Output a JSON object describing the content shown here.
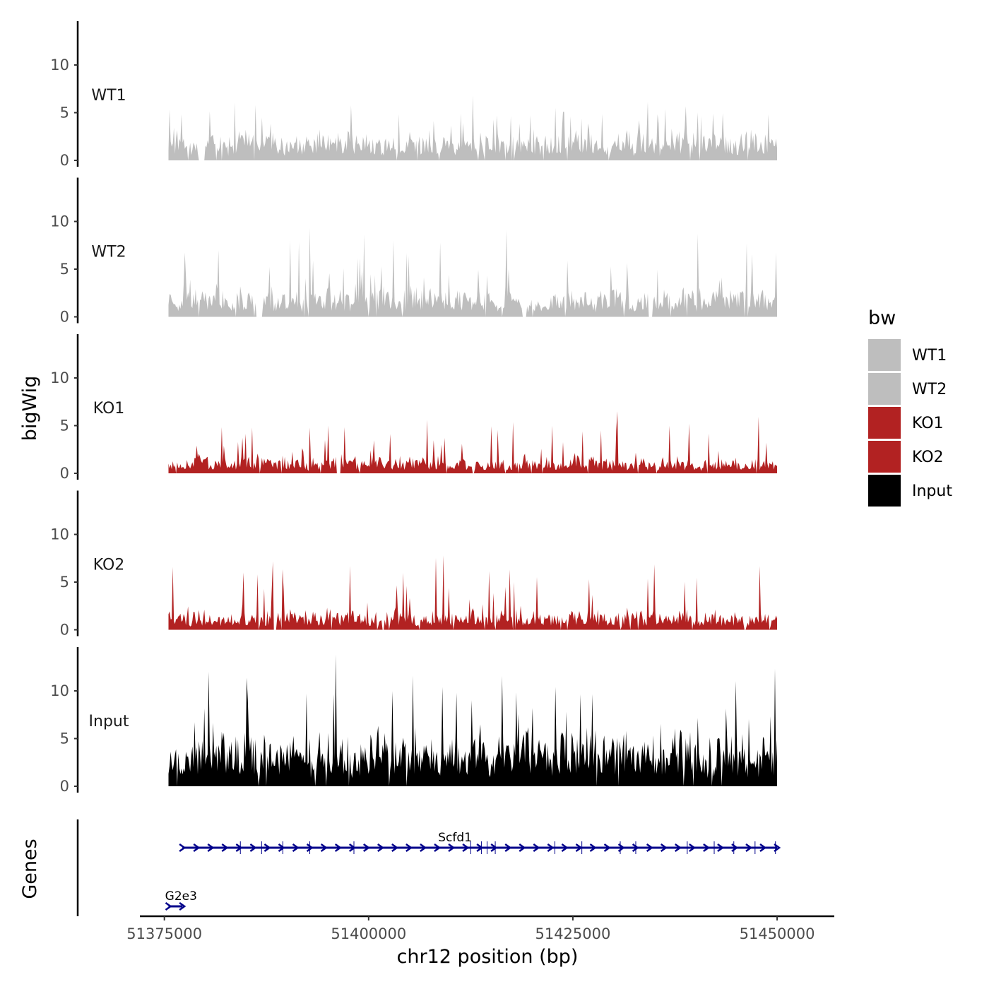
{
  "chart_data": {
    "type": "area",
    "title": "",
    "ylabel": "bigWig",
    "xlabel": "chr12 position (bp)",
    "xlim": [
      51372000,
      51457000
    ],
    "x_ticks": [
      51375000,
      51400000,
      51425000,
      51450000
    ],
    "x_tick_labels": [
      "51375000",
      "51400000",
      "51425000",
      "51450000"
    ],
    "signal_range": [
      51375500,
      51450000
    ],
    "ylim": [
      0,
      14.5
    ],
    "y_ticks": [
      0,
      5,
      10
    ],
    "y_tick_labels": [
      "0",
      "5",
      "10"
    ],
    "tracks": [
      {
        "name": "WT1",
        "label": "WT1",
        "color": "#BEBEBE",
        "seed": 11,
        "base": 2.2,
        "max_value": 6.8,
        "gaps": [
          [
            51379200,
            51380000
          ]
        ]
      },
      {
        "name": "WT2",
        "label": "WT2",
        "color": "#BEBEBE",
        "seed": 23,
        "base": 2.3,
        "max_value": 9.3,
        "gaps": [
          [
            51386200,
            51387000
          ],
          [
            51418800,
            51419300
          ],
          [
            51434300,
            51434800
          ]
        ]
      },
      {
        "name": "KO1",
        "label": "KO1",
        "color": "#B22222",
        "seed": 37,
        "base": 1.3,
        "max_value": 6.5,
        "gaps": [
          [
            51396000,
            51396600
          ]
        ]
      },
      {
        "name": "KO2",
        "label": "KO2",
        "color": "#B22222",
        "seed": 41,
        "base": 1.5,
        "max_value": 7.8,
        "gaps": [
          [
            51388300,
            51388800
          ],
          [
            51401600,
            51401900
          ],
          [
            51445900,
            51446200
          ]
        ]
      },
      {
        "name": "Input",
        "label": "Input",
        "color": "#000000",
        "seed": 53,
        "base": 4.3,
        "max_value": 13.8,
        "gaps": []
      }
    ],
    "legend": {
      "title": "bw",
      "position": "right",
      "entries": [
        {
          "label": "WT1",
          "color": "#BEBEBE"
        },
        {
          "label": "WT2",
          "color": "#BEBEBE"
        },
        {
          "label": "KO1",
          "color": "#B22222"
        },
        {
          "label": "KO2",
          "color": "#B22222"
        },
        {
          "label": "Input",
          "color": "#000000"
        }
      ]
    },
    "genes_panel": {
      "label": "Genes",
      "color": "#00008B",
      "genes": [
        {
          "name": "Scfd1",
          "start": 51377200,
          "end": 51450000,
          "strand": "+",
          "exons": [
            51384300,
            51386900,
            51389500,
            51392800,
            51398200,
            51412500,
            51413800,
            51414500,
            51415500,
            51422800,
            51426100,
            51430800,
            51432700,
            51439000,
            51442300,
            51444700,
            51447300,
            51449800
          ]
        },
        {
          "name": "G2e3",
          "start": 51375500,
          "end": 51377200,
          "strand": "+",
          "exons": []
        }
      ]
    }
  }
}
